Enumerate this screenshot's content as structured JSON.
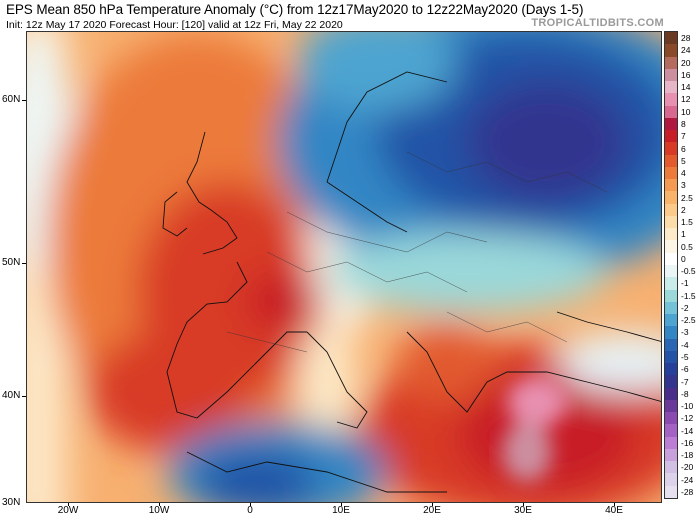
{
  "header": {
    "title": "EPS Mean 850 hPa Temperature Anomaly (°C) from 12z17May2020 to 12z22May2020 (Days 1-5)",
    "subtitle": "Init: 12z May 17 2020   Forecast Hour: [120]   valid at 12z Fri, May 22 2020",
    "brand": "TROPICALTIDBITS.COM"
  },
  "map": {
    "lat_labels": [
      "60N",
      "50N",
      "40N",
      "30N"
    ],
    "lon_labels": [
      "20W",
      "10W",
      "0",
      "10E",
      "20E",
      "30E",
      "40E"
    ]
  },
  "colorbar": {
    "labels": [
      "28",
      "24",
      "20",
      "16",
      "14",
      "12",
      "10",
      "8",
      "7",
      "6",
      "5",
      "4",
      "3",
      "2.5",
      "2",
      "1.5",
      "1",
      "0.5",
      "0",
      "-0.5",
      "-1",
      "-1.5",
      "-2",
      "-2.5",
      "-3",
      "-4",
      "-5",
      "-6",
      "-7",
      "-8",
      "-10",
      "-12",
      "-14",
      "-16",
      "-18",
      "-20",
      "-24",
      "-28"
    ],
    "colors": [
      "#6b3a22",
      "#8a4a2a",
      "#b46a5c",
      "#cc8fa0",
      "#e8b4c8",
      "#e890b0",
      "#d86890",
      "#b01840",
      "#c81e28",
      "#d83a28",
      "#e25a2e",
      "#ec7a3a",
      "#f49a52",
      "#f8b46a",
      "#fbc98a",
      "#fcdca8",
      "#fdeac8",
      "#fdf6e6",
      "#ffffff",
      "#eaf6f6",
      "#c8ecea",
      "#9ad8da",
      "#74c2d8",
      "#4ea4d0",
      "#3286c4",
      "#2a66b4",
      "#2452a6",
      "#24409a",
      "#32348e",
      "#4a2c8a",
      "#6a3a9a",
      "#8a4ab0",
      "#a462c4",
      "#bc7ed4",
      "#c8a0dc",
      "#d2c0e4",
      "#dcd2ea",
      "#e6e0f0"
    ]
  }
}
